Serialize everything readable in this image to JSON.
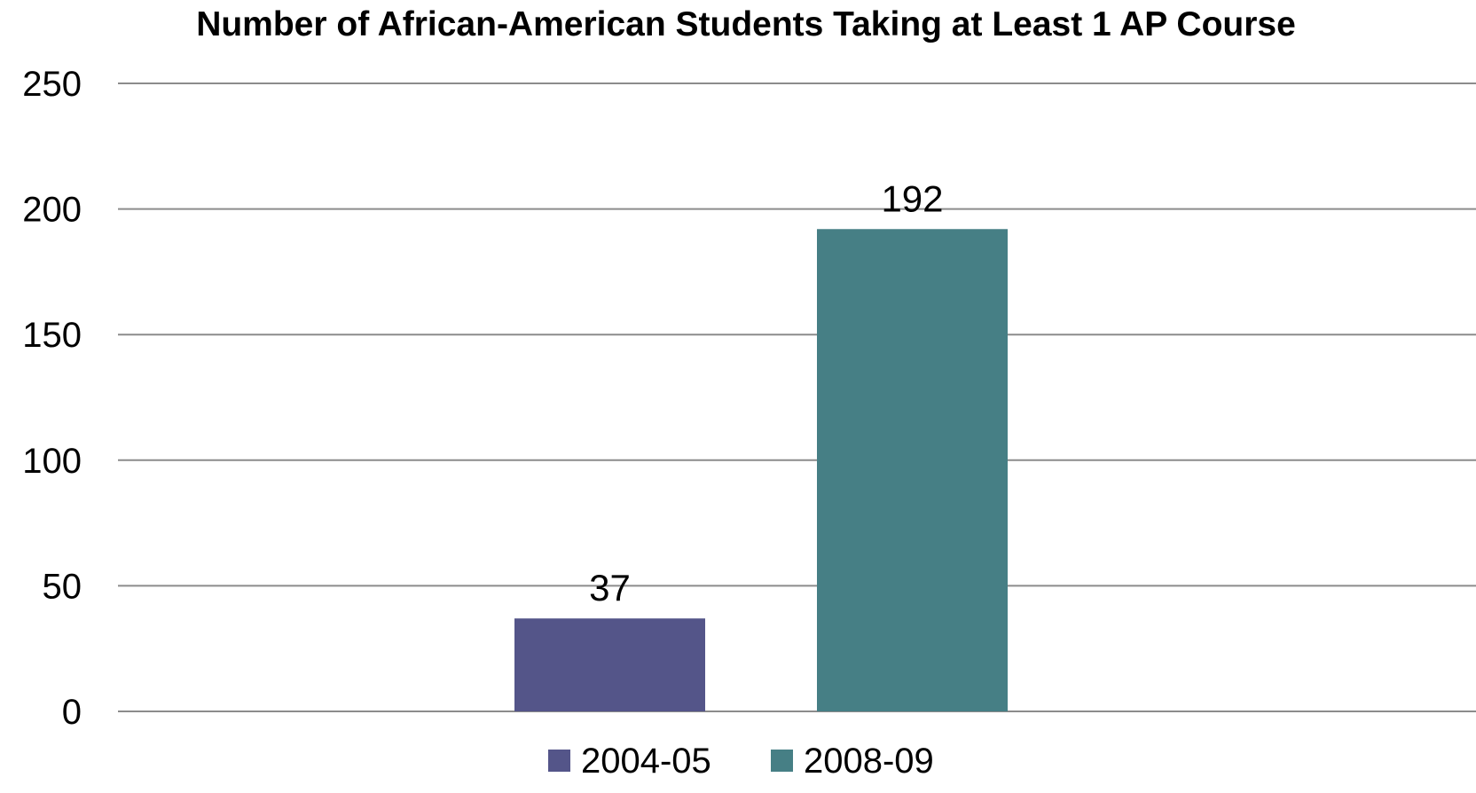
{
  "chart_data": {
    "type": "bar",
    "title": "Number of African-American Students Taking at Least 1 AP Course",
    "xlabel": "",
    "ylabel": "",
    "categories": [
      ""
    ],
    "series": [
      {
        "name": "2004-05",
        "values": [
          37
        ],
        "color": "#545589"
      },
      {
        "name": "2008-09",
        "values": [
          192
        ],
        "color": "#467f85"
      }
    ],
    "ylim": [
      0,
      250
    ],
    "yticks": [
      "0",
      "50",
      "100",
      "150",
      "200",
      "250"
    ],
    "ytick_values": [
      0,
      50,
      100,
      150,
      200,
      250
    ],
    "data_labels": [
      "37",
      "192"
    ],
    "grid": true,
    "legend": "bottom-center"
  },
  "colors": {
    "gridline": "#8c8c8c",
    "text": "#000000",
    "background": "#ffffff"
  }
}
